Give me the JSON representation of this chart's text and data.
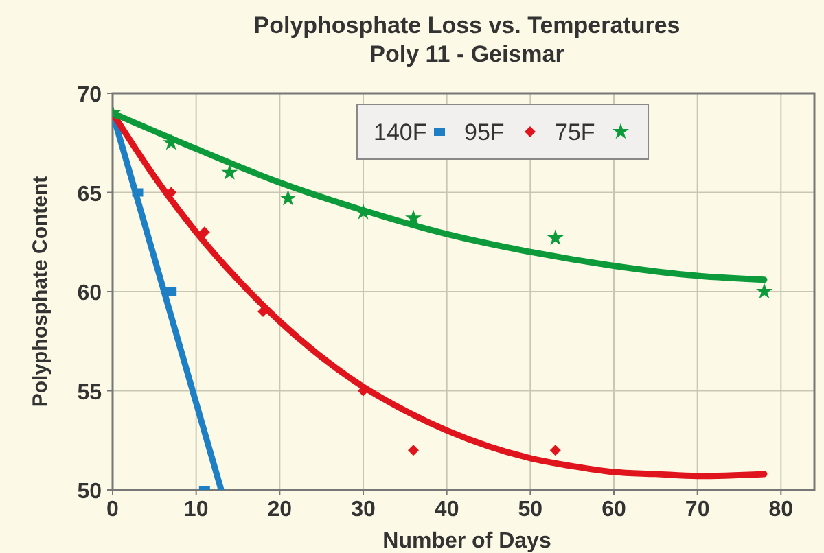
{
  "chart_data": {
    "type": "scatter",
    "title": "Polyphosphate Loss vs. Temperatures",
    "subtitle": "Poly 11 - Geismar",
    "xlabel": "Number of Days",
    "ylabel": "Polyphosphate Content",
    "xlim": [
      0,
      84
    ],
    "xticks": [
      0,
      10,
      20,
      30,
      40,
      50,
      60,
      70,
      80
    ],
    "ylim": [
      50,
      70
    ],
    "yticks": [
      50,
      55,
      60,
      65,
      70
    ],
    "grid": true,
    "legend": "top",
    "series": [
      {
        "type": "line",
        "color": "#1f7fc4",
        "marker": "none",
        "x": [
          0,
          13
        ],
        "values": [
          69,
          50
        ]
      },
      {
        "type": "line",
        "color": "#e0141c",
        "marker": "none",
        "x": [
          0,
          5,
          10,
          15,
          20,
          25,
          30,
          35,
          40,
          45,
          50,
          55,
          60,
          65,
          70,
          78
        ],
        "values": [
          69,
          65.8,
          63,
          60.6,
          58.5,
          56.7,
          55.2,
          54,
          53,
          52.2,
          51.6,
          51.2,
          50.9,
          50.8,
          50.7,
          50.8
        ]
      },
      {
        "type": "line",
        "color": "#0c9a3a",
        "marker": "none",
        "x": [
          0,
          10,
          20,
          30,
          40,
          50,
          60,
          70,
          78
        ],
        "values": [
          69,
          67.2,
          65.5,
          64.1,
          62.9,
          62,
          61.3,
          60.8,
          60.6
        ]
      },
      {
        "name": "140F",
        "color": "#1f7fc4",
        "marker": "square",
        "x": [
          3,
          7,
          11
        ],
        "values": [
          65,
          60,
          50
        ]
      },
      {
        "name": "95F",
        "color": "#e0141c",
        "marker": "diamond",
        "x": [
          7,
          11,
          18,
          30,
          36,
          53
        ],
        "values": [
          65,
          63,
          59,
          55,
          52,
          52
        ]
      },
      {
        "name": "75F",
        "color": "#0c9a3a",
        "marker": "star",
        "x": [
          0,
          7,
          14,
          21,
          30,
          36,
          53,
          78
        ],
        "values": [
          69,
          67.5,
          66,
          64.7,
          64,
          63.7,
          62.7,
          60
        ]
      }
    ]
  }
}
